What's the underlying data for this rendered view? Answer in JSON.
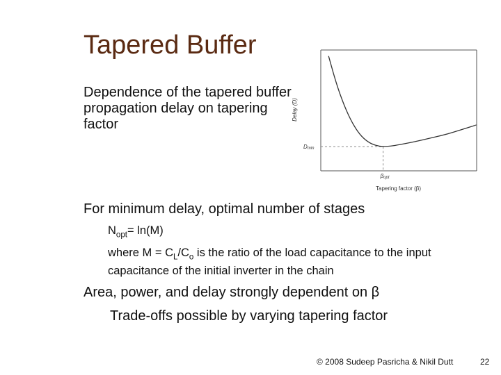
{
  "slide": {
    "title": "Tapered Buffer",
    "bullet_marker": "",
    "bullets": [
      {
        "text": "Dependence of the tapered buffer propagation delay on tapering factor"
      },
      {
        "text": "For minimum delay, optimal number of stages"
      },
      {
        "text": "Area, power, and delay strongly dependent on β"
      }
    ],
    "subbullets": {
      "nopt_main": "N",
      "nopt_sub": "opt",
      "nopt_rest": "= ln(M)",
      "where_a": "where M = C",
      "where_b": "L",
      "where_c": "/C",
      "where_d": "o",
      "where_e": " is the ratio of the load capacitance to the input capacitance of the initial inverter in the chain",
      "tradeoff": "Trade-offs possible by varying tapering factor"
    },
    "footer": {
      "copyright": "© 2008 Sudeep Pasricha & Nikil Dutt",
      "page_number": "22"
    }
  },
  "chart_data": {
    "type": "line",
    "xlabel": "Tapering factor (β)",
    "ylabel": "Delay (D)",
    "y_marker_label": "D",
    "y_marker_sub": "min",
    "x_marker_label": "β",
    "x_marker_sub": "opt",
    "grid": false,
    "x": [
      0.05,
      0.1,
      0.15,
      0.2,
      0.25,
      0.3,
      0.35,
      0.4,
      0.45,
      0.5,
      0.6,
      0.7,
      0.8,
      0.9,
      1.0
    ],
    "y": [
      0.95,
      0.72,
      0.54,
      0.4,
      0.3,
      0.24,
      0.21,
      0.2,
      0.205,
      0.215,
      0.24,
      0.27,
      0.3,
      0.34,
      0.38
    ],
    "xlim": [
      0,
      1
    ],
    "ylim": [
      0,
      1
    ],
    "optimum": {
      "x": 0.4,
      "y": 0.2
    },
    "line_color": "#333333"
  }
}
